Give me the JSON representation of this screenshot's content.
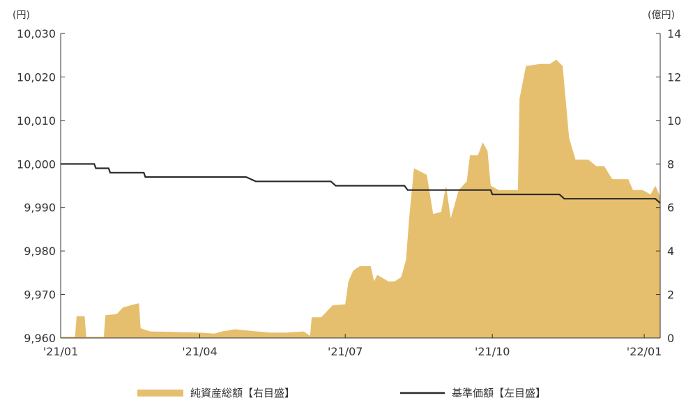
{
  "chart_data": {
    "type": "area+line",
    "left_unit": "(円)",
    "right_unit": "(億円)",
    "left_ylim": [
      9960,
      10030
    ],
    "right_ylim": [
      0,
      14
    ],
    "left_ticks": [
      "10,030",
      "10,020",
      "10,010",
      "10,000",
      "9,990",
      "9,980",
      "9,970",
      "9,960"
    ],
    "left_tick_values": [
      10030,
      10020,
      10010,
      10000,
      9990,
      9980,
      9970,
      9960
    ],
    "right_ticks": [
      "14",
      "12",
      "10",
      "8",
      "6",
      "4",
      "2",
      "0"
    ],
    "right_tick_values": [
      14,
      12,
      10,
      8,
      6,
      4,
      2,
      0
    ],
    "x_ticks": [
      "'21/01",
      "'21/04",
      "'21/07",
      "'21/10",
      "'22/01"
    ],
    "x_tick_dates": [
      "2021-01-04",
      "2021-04-01",
      "2021-07-01",
      "2021-10-01",
      "2022-01-04"
    ],
    "x_range": [
      "2021-01-04",
      "2022-01-14"
    ],
    "colors": {
      "area": "#e6bf6e",
      "line": "#2a2a2a",
      "axis": "#333333"
    },
    "series": [
      {
        "name": "純資産総額【右目盛】",
        "axis": "right",
        "style": "area",
        "points": [
          [
            "2021-01-04",
            0.05
          ],
          [
            "2021-01-13",
            0.05
          ],
          [
            "2021-01-14",
            1.0
          ],
          [
            "2021-01-19",
            1.0
          ],
          [
            "2021-01-20",
            0.05
          ],
          [
            "2021-01-31",
            0.05
          ],
          [
            "2021-02-01",
            1.05
          ],
          [
            "2021-02-08",
            1.1
          ],
          [
            "2021-02-12",
            1.4
          ],
          [
            "2021-02-19",
            1.55
          ],
          [
            "2021-02-22",
            1.6
          ],
          [
            "2021-02-23",
            0.45
          ],
          [
            "2021-03-01",
            0.3
          ],
          [
            "2021-03-15",
            0.28
          ],
          [
            "2021-04-01",
            0.25
          ],
          [
            "2021-04-10",
            0.2
          ],
          [
            "2021-04-15",
            0.3
          ],
          [
            "2021-04-23",
            0.4
          ],
          [
            "2021-05-07",
            0.3
          ],
          [
            "2021-05-15",
            0.25
          ],
          [
            "2021-05-25",
            0.25
          ],
          [
            "2021-06-05",
            0.3
          ],
          [
            "2021-06-09",
            0.1
          ],
          [
            "2021-06-10",
            0.95
          ],
          [
            "2021-06-16",
            0.95
          ],
          [
            "2021-06-23",
            1.5
          ],
          [
            "2021-07-01",
            1.55
          ],
          [
            "2021-07-03",
            2.6
          ],
          [
            "2021-07-06",
            3.1
          ],
          [
            "2021-07-10",
            3.3
          ],
          [
            "2021-07-17",
            3.3
          ],
          [
            "2021-07-19",
            2.6
          ],
          [
            "2021-07-21",
            2.9
          ],
          [
            "2021-07-28",
            2.6
          ],
          [
            "2021-08-01",
            2.6
          ],
          [
            "2021-08-05",
            2.8
          ],
          [
            "2021-08-08",
            3.6
          ],
          [
            "2021-08-10",
            5.5
          ],
          [
            "2021-08-13",
            7.8
          ],
          [
            "2021-08-21",
            7.5
          ],
          [
            "2021-08-25",
            5.7
          ],
          [
            "2021-08-30",
            5.8
          ],
          [
            "2021-09-02",
            7.0
          ],
          [
            "2021-09-05",
            5.5
          ],
          [
            "2021-09-10",
            6.8
          ],
          [
            "2021-09-15",
            7.2
          ],
          [
            "2021-09-17",
            8.4
          ],
          [
            "2021-09-22",
            8.4
          ],
          [
            "2021-09-25",
            9.0
          ],
          [
            "2021-09-28",
            8.6
          ],
          [
            "2021-09-30",
            7.0
          ],
          [
            "2021-10-05",
            6.8
          ],
          [
            "2021-10-10",
            6.8
          ],
          [
            "2021-10-17",
            6.8
          ],
          [
            "2021-10-18",
            11.0
          ],
          [
            "2021-10-22",
            12.5
          ],
          [
            "2021-10-31",
            12.6
          ],
          [
            "2021-11-06",
            12.6
          ],
          [
            "2021-11-10",
            12.8
          ],
          [
            "2021-11-14",
            12.5
          ],
          [
            "2021-11-18",
            9.2
          ],
          [
            "2021-11-22",
            8.2
          ],
          [
            "2021-11-30",
            8.2
          ],
          [
            "2021-12-05",
            7.9
          ],
          [
            "2021-12-10",
            7.9
          ],
          [
            "2021-12-15",
            7.3
          ],
          [
            "2021-12-25",
            7.3
          ],
          [
            "2021-12-28",
            6.8
          ],
          [
            "2022-01-03",
            6.8
          ],
          [
            "2022-01-08",
            6.6
          ],
          [
            "2022-01-11",
            7.0
          ],
          [
            "2022-01-14",
            6.5
          ]
        ]
      },
      {
        "name": "基準価額【左目盛】",
        "axis": "left",
        "style": "step-line",
        "points": [
          [
            "2021-01-04",
            10000
          ],
          [
            "2021-01-25",
            10000
          ],
          [
            "2021-01-26",
            9999
          ],
          [
            "2021-02-03",
            9999
          ],
          [
            "2021-02-04",
            9998
          ],
          [
            "2021-02-25",
            9998
          ],
          [
            "2021-02-26",
            9997
          ],
          [
            "2021-04-30",
            9997
          ],
          [
            "2021-05-06",
            9996
          ],
          [
            "2021-06-22",
            9996
          ],
          [
            "2021-06-25",
            9995
          ],
          [
            "2021-08-07",
            9995
          ],
          [
            "2021-08-09",
            9994
          ],
          [
            "2021-09-30",
            9994
          ],
          [
            "2021-10-01",
            9993
          ],
          [
            "2021-11-12",
            9993
          ],
          [
            "2021-11-15",
            9992
          ],
          [
            "2022-01-11",
            9992
          ],
          [
            "2022-01-14",
            9991
          ]
        ]
      }
    ],
    "legend": {
      "placement": "bottom",
      "items": [
        {
          "label": "純資産総額【右目盛】",
          "color": "#e6bf6e",
          "style": "area"
        },
        {
          "label": "基準価額【左目盛】",
          "color": "#2a2a2a",
          "style": "line"
        }
      ]
    }
  }
}
